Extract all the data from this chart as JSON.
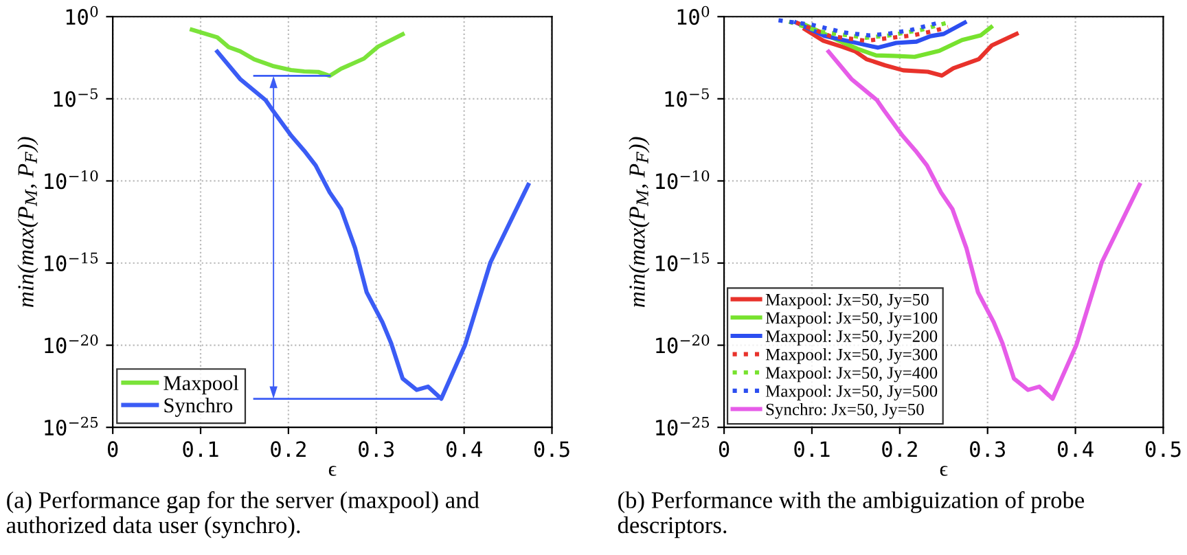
{
  "chart_data": [
    {
      "type": "line",
      "xlabel": "ϵ",
      "ylabel": "min(max(P$_{M}$, P$_{F}$))",
      "log": "y",
      "xlim": [
        0,
        0.5
      ],
      "xticks": [
        0,
        0.1,
        0.2,
        0.3,
        0.4,
        0.5
      ],
      "ylim": [
        1e-25,
        1
      ],
      "yticks": [
        {
          "value": 1,
          "label": "10$^{0}$"
        },
        {
          "value": 1e-05,
          "label": "10$^{−5}$"
        },
        {
          "value": 1e-10,
          "label": "10$^{−10}$"
        },
        {
          "value": 1e-15,
          "label": "10$^{−15}$"
        },
        {
          "value": 1e-20,
          "label": "10$^{−20}$"
        },
        {
          "value": 1e-25,
          "label": "10$^{−25}$"
        }
      ],
      "grid": true,
      "legend": "bottom left",
      "annotations": [
        "(a) Performance gap for the server (maxpool) and authorized data user (synchro)."
      ],
      "series": [
        {
          "name": "Maxpool",
          "color": "#7be33a",
          "x": [
            0.09,
            0.119,
            0.132,
            0.145,
            0.161,
            0.182,
            0.203,
            0.218,
            0.234,
            0.247,
            0.26,
            0.286,
            0.302,
            0.33
          ],
          "values": [
            0.16,
            0.055,
            0.014,
            0.0079,
            0.0025,
            0.001,
            0.00056,
            0.00046,
            0.00043,
            0.00025,
            0.00068,
            0.0028,
            0.015,
            0.085
          ]
        },
        {
          "name": "Synchro",
          "color": "#3b5cf5",
          "x": [
            0.119,
            0.145,
            0.174,
            0.182,
            0.203,
            0.218,
            0.231,
            0.247,
            0.26,
            0.276,
            0.289,
            0.307,
            0.317,
            0.33,
            0.346,
            0.359,
            0.374,
            0.401,
            0.43,
            0.473
          ],
          "values": [
            0.0074,
            0.00016,
            8.3e-06,
            2e-06,
            5.8e-08,
            6.9e-09,
            8.7e-10,
            2e-11,
            1.9e-12,
            7.8e-15,
            1.7e-17,
            2.5e-19,
            1.3e-20,
            9.3e-23,
            1.9e-23,
            3e-23,
            5.5e-24,
            1e-20,
            1.1e-15,
            5.8e-11
          ]
        }
      ]
    },
    {
      "type": "line",
      "xlabel": "ϵ",
      "ylabel": "min(max(P$_{M}$, P$_{F}$))",
      "log": "y",
      "xlim": [
        0,
        0.5
      ],
      "xticks": [
        0,
        0.1,
        0.2,
        0.3,
        0.4,
        0.5
      ],
      "ylim": [
        1e-25,
        1
      ],
      "yticks": [
        {
          "value": 1,
          "label": "10$^{0}$"
        },
        {
          "value": 1e-05,
          "label": "10$^{−5}$"
        },
        {
          "value": 1e-10,
          "label": "10$^{−10}$"
        },
        {
          "value": 1e-15,
          "label": "10$^{−15}$"
        },
        {
          "value": 1e-20,
          "label": "10$^{−20}$"
        },
        {
          "value": 1e-25,
          "label": "10$^{−25}$"
        }
      ],
      "grid": true,
      "legend": "bottom left",
      "annotations": [
        "(b) Performance with the ambiguization of probe descriptors."
      ],
      "series": [
        {
          "name": "Maxpool: Jx=50, Jy=50",
          "color": "#e8322b",
          "line_style": "solid",
          "x": [
            0.092,
            0.113,
            0.134,
            0.149,
            0.162,
            0.183,
            0.204,
            0.232,
            0.248,
            0.261,
            0.29,
            0.305,
            0.333
          ],
          "values": [
            0.17,
            0.034,
            0.015,
            0.0079,
            0.0026,
            0.0011,
            0.00054,
            0.00044,
            0.00026,
            0.00072,
            0.0026,
            0.018,
            0.089
          ]
        },
        {
          "name": "Maxpool: Jx=50, Jy=100",
          "color": "#77e22e",
          "line_style": "solid",
          "x": [
            0.092,
            0.131,
            0.152,
            0.173,
            0.193,
            0.217,
            0.245,
            0.271,
            0.292,
            0.304
          ],
          "values": [
            0.32,
            0.034,
            0.011,
            0.0044,
            0.0041,
            0.0036,
            0.0083,
            0.038,
            0.072,
            0.23
          ]
        },
        {
          "name": "Maxpool: Jx=50, Jy=200",
          "color": "#2c4ef0",
          "line_style": "solid",
          "x": [
            0.082,
            0.115,
            0.147,
            0.175,
            0.196,
            0.219,
            0.235,
            0.25,
            0.274
          ],
          "values": [
            0.44,
            0.065,
            0.028,
            0.013,
            0.025,
            0.03,
            0.065,
            0.089,
            0.44
          ]
        },
        {
          "name": "Maxpool: Jx=50, Jy=300",
          "color": "#e8322b",
          "line_style": "dotted",
          "x": [
            0.082,
            0.121,
            0.162,
            0.188,
            0.214,
            0.235,
            0.255
          ],
          "values": [
            0.44,
            0.065,
            0.034,
            0.05,
            0.072,
            0.12,
            0.23
          ]
        },
        {
          "name": "Maxpool: Jx=50, Jy=400",
          "color": "#77e22e",
          "line_style": "dotted",
          "x": [
            0.074,
            0.11,
            0.162,
            0.188,
            0.225,
            0.255
          ],
          "values": [
            0.49,
            0.12,
            0.052,
            0.072,
            0.16,
            0.44
          ]
        },
        {
          "name": "Maxpool: Jx=50, Jy=500",
          "color": "#2c4ef0",
          "line_style": "dotted",
          "x": [
            0.062,
            0.1,
            0.136,
            0.165,
            0.188,
            0.214,
            0.245
          ],
          "values": [
            0.6,
            0.32,
            0.11,
            0.072,
            0.093,
            0.16,
            0.44
          ]
        },
        {
          "name": "Synchro: Jx=50, Jy=50",
          "color": "#e65ce8",
          "line_style": "solid",
          "x": [
            0.119,
            0.145,
            0.174,
            0.182,
            0.203,
            0.218,
            0.231,
            0.247,
            0.26,
            0.276,
            0.289,
            0.307,
            0.317,
            0.33,
            0.346,
            0.359,
            0.374,
            0.401,
            0.43,
            0.473
          ],
          "values": [
            0.0074,
            0.00016,
            8.3e-06,
            2e-06,
            5.8e-08,
            6.9e-09,
            8.7e-10,
            2e-11,
            1.9e-12,
            7.8e-15,
            1.7e-17,
            2.5e-19,
            1.3e-20,
            9.3e-23,
            1.9e-23,
            3e-23,
            5.5e-24,
            1e-20,
            1.1e-15,
            5.8e-11
          ]
        }
      ]
    }
  ]
}
